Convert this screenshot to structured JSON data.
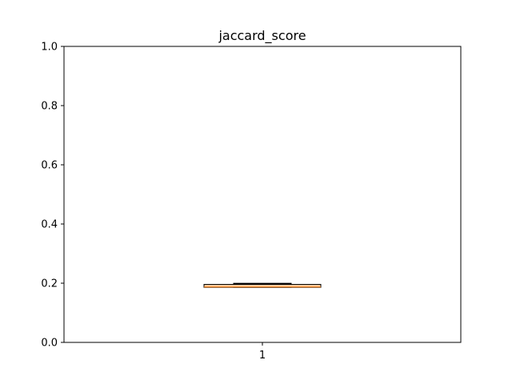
{
  "chart_data": {
    "type": "box",
    "title": "jaccard_score",
    "xlabel": "",
    "ylabel": "",
    "categories": [
      "1"
    ],
    "ylim": [
      0.0,
      1.0
    ],
    "yticks": [
      0.0,
      0.2,
      0.4,
      0.6,
      0.8,
      1.0
    ],
    "ytick_labels": [
      "0.0",
      "0.2",
      "0.4",
      "0.6",
      "0.8",
      "1.0"
    ],
    "grid": false,
    "boxes": [
      {
        "category": "1",
        "whisker_low": 0.186,
        "q1": 0.186,
        "median": 0.187,
        "q3": 0.196,
        "whisker_high": 0.199
      }
    ],
    "colors": {
      "box_fill": "#f5c89a",
      "median_line": "#ff7f0e",
      "edge": "#000000"
    }
  }
}
